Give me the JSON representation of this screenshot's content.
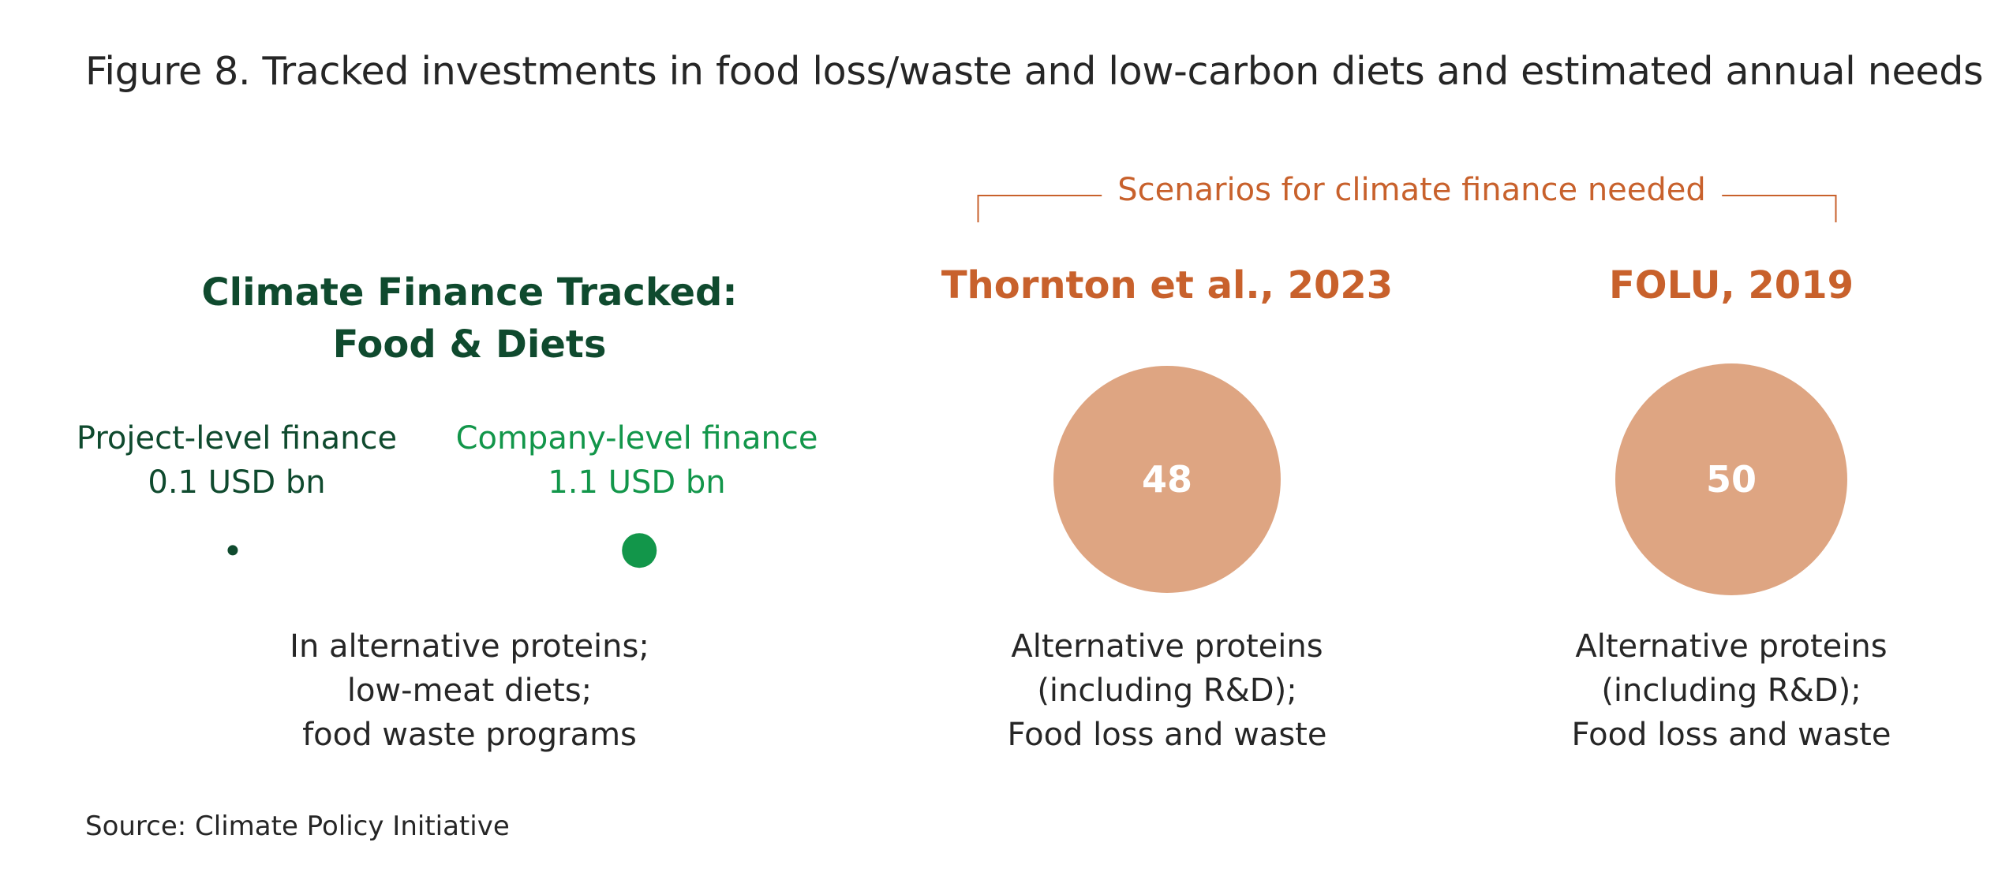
{
  "figure": {
    "title": "Figure 8. Tracked investments in food loss/waste and low-carbon diets and estimated annual needs",
    "source": "Source: Climate Policy Initiative"
  },
  "tracked": {
    "heading_line1": "Climate Finance Tracked:",
    "heading_line2": "Food & Diets",
    "description_lines": [
      "In alternative proteins;",
      "low-meat diets;",
      "food waste programs"
    ]
  },
  "scenarios": {
    "bracket_label": "Scenarios for climate finance needed"
  },
  "colors": {
    "project_finance": "#0f4a2e",
    "company_finance": "#12964a",
    "needs": "#dea582",
    "scenario_text": "#c8612c"
  },
  "chart_data": {
    "type": "bubble",
    "title": "Figure 8. Tracked investments in food loss/waste and low-carbon diets and estimated annual needs",
    "unit": "USD bn",
    "tracked": [
      {
        "name": "Project-level finance",
        "value": 0.1,
        "value_label": "0.1 USD bn"
      },
      {
        "name": "Company-level finance",
        "value": 1.1,
        "value_label": "1.1 USD bn"
      }
    ],
    "needs": [
      {
        "name": "Thornton et al., 2023",
        "value": 48,
        "value_label": "48",
        "description_lines": [
          "Alternative proteins",
          "(including R&D);",
          "Food loss and waste"
        ]
      },
      {
        "name": "FOLU, 2019",
        "value": 50,
        "value_label": "50",
        "description_lines": [
          "Alternative proteins",
          "(including R&D);",
          "Food loss and waste"
        ]
      }
    ]
  }
}
